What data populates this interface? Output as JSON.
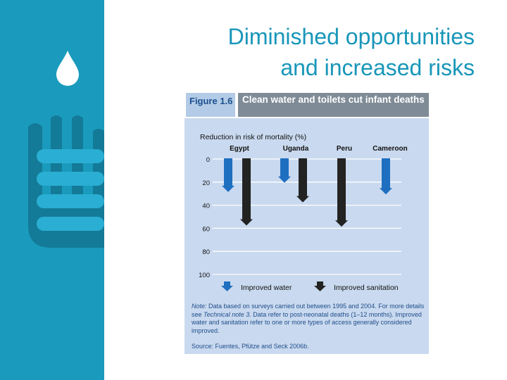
{
  "slide": {
    "title_line1": "Diminished opportunities",
    "title_line2": "and increased risks",
    "accent_color": "#1a9bbd",
    "decoration_icons": [
      "water-drop-icon",
      "hand-icon"
    ]
  },
  "figure": {
    "tag": "Figure 1.6",
    "caption": "Clean water and toilets cut infant deaths",
    "note_label": "Note:",
    "note_text_1": "Data based on surveys carried out between 1995 and 2004. For more details see",
    "note_ref": "Technical note 3.",
    "note_text_2": "Data refer to post-neonatal deaths (1–12 months). Improved water and sanitation refer to one or more types of access generally considered improved.",
    "source_label": "Source:",
    "source_text": "Fuentes, Pfütze and Seck 2006b."
  },
  "chart_data": {
    "type": "bar",
    "orientation": "downward",
    "ylabel": "Reduction in risk of mortality (%)",
    "categories": [
      "Egypt",
      "Uganda",
      "Peru",
      "Cameroon"
    ],
    "yticks": [
      0,
      20,
      40,
      60,
      80,
      100
    ],
    "ylim": [
      0,
      100
    ],
    "grid": true,
    "series": [
      {
        "name": "Improved water",
        "color": "#1e6fc0",
        "values": [
          28,
          20,
          null,
          30
        ]
      },
      {
        "name": "Improved sanitation",
        "color": "#232323",
        "values": [
          57,
          37,
          58,
          null
        ]
      }
    ],
    "legend_position": "bottom"
  }
}
